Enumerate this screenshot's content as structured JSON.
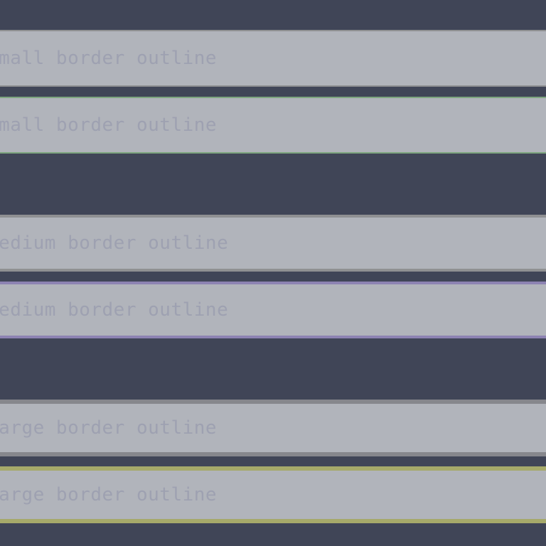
{
  "fields": {
    "small_normal": {
      "value": "small border outline"
    },
    "small_focused": {
      "value": "small border outline"
    },
    "medium_normal": {
      "value": "medium border outline"
    },
    "medium_focused": {
      "value": "medium border outline"
    },
    "large_normal": {
      "value": "large border outline"
    },
    "large_focused": {
      "value": "large border outline"
    }
  },
  "colors": {
    "background": "#404557",
    "field_fill": "#b1b4bb",
    "text": "#9ea1b1",
    "border_default": "#8f9092",
    "border_small_focus": "#7ea57f",
    "border_medium_focus": "#8d83b2",
    "border_large_focus": "#a6a96a"
  }
}
